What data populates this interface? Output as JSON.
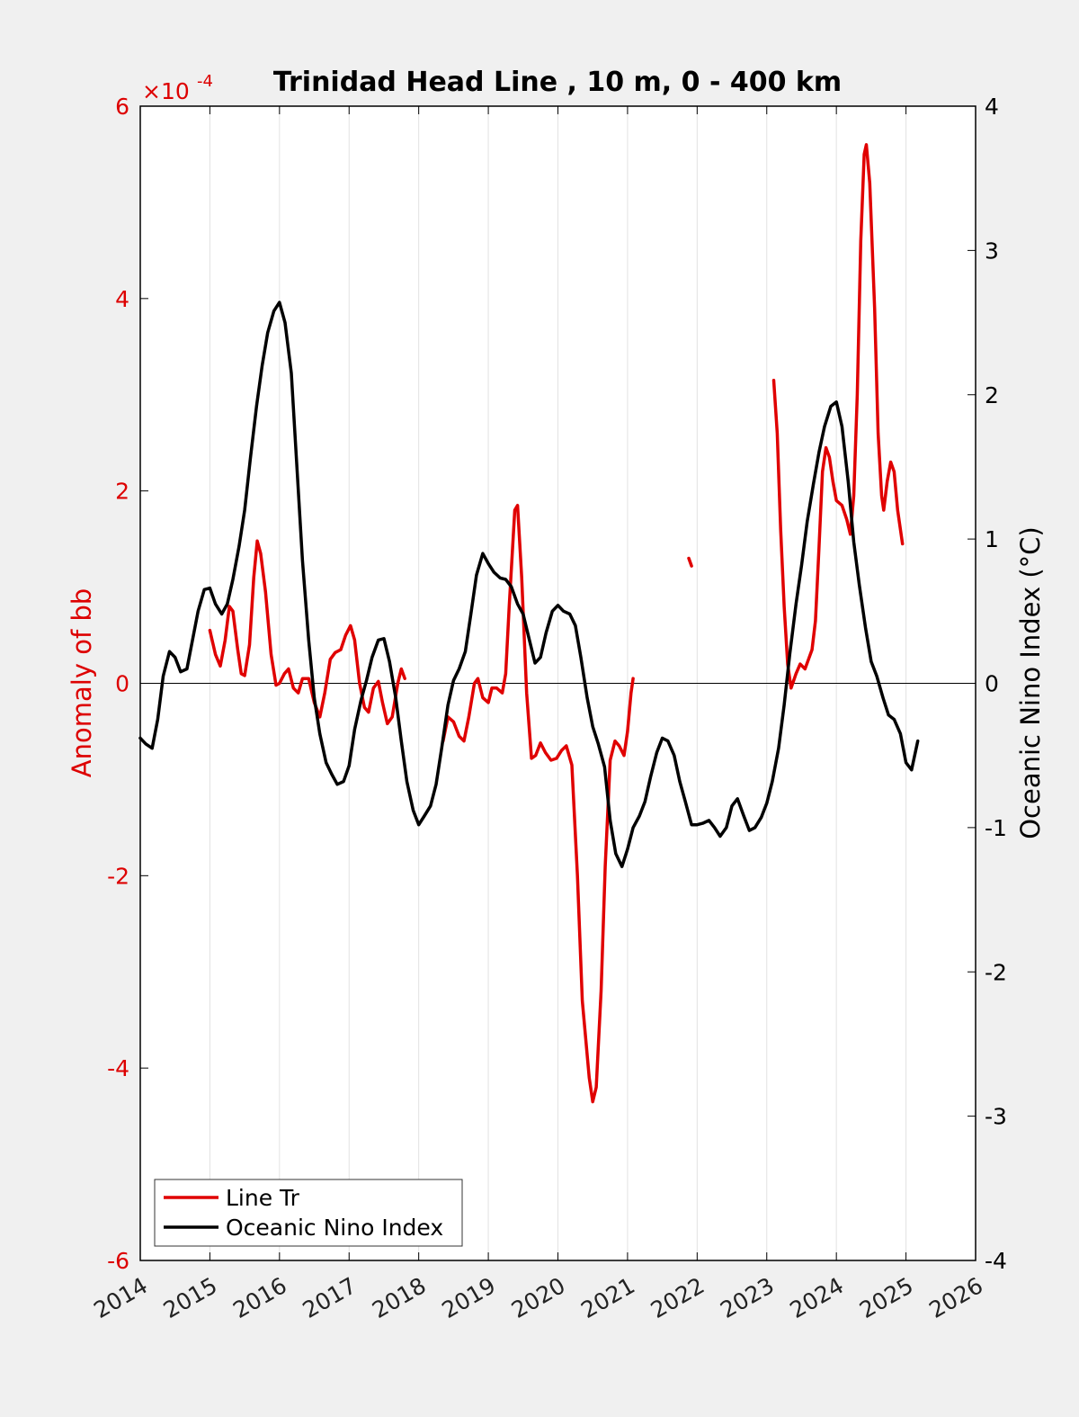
{
  "chart_data": {
    "type": "line",
    "title": "Trinidad Head Line , 10 m, 0 - 400 km",
    "ylabel_left": "Anomaly of bb",
    "ylabel_right": "Oceanic Nino Index (°C)",
    "left_exponent_base": "×10",
    "left_exponent_power": "-4",
    "xlim": [
      2014,
      2026
    ],
    "ylim_left": [
      -6,
      6
    ],
    "ylim_right": [
      -4,
      4
    ],
    "x_ticks": [
      "2014",
      "2015",
      "2016",
      "2017",
      "2018",
      "2019",
      "2020",
      "2021",
      "2022",
      "2023",
      "2024",
      "2025",
      "2026"
    ],
    "y_ticks_left": [
      "6",
      "4",
      "2",
      "0",
      "-2",
      "-4",
      "-6"
    ],
    "y_ticks_right": [
      "4",
      "3",
      "2",
      "1",
      "0",
      "-1",
      "-2",
      "-3",
      "-4"
    ],
    "grid": "vertical",
    "legend_position": "bottom-left",
    "colors": {
      "line_tr": "#e00000",
      "oni": "#000000",
      "left_axis": "#dd0000"
    },
    "series": [
      {
        "name": "Line Tr",
        "axis": "left",
        "segments": [
          [
            [
              2015.0,
              0.55
            ],
            [
              2015.08,
              0.3
            ],
            [
              2015.15,
              0.18
            ],
            [
              2015.22,
              0.45
            ],
            [
              2015.28,
              0.8
            ],
            [
              2015.33,
              0.75
            ],
            [
              2015.4,
              0.35
            ],
            [
              2015.45,
              0.1
            ],
            [
              2015.5,
              0.08
            ],
            [
              2015.57,
              0.4
            ],
            [
              2015.63,
              1.1
            ],
            [
              2015.68,
              1.48
            ],
            [
              2015.73,
              1.35
            ],
            [
              2015.8,
              0.95
            ],
            [
              2015.88,
              0.3
            ],
            [
              2015.95,
              -0.02
            ],
            [
              2016.0,
              0.0
            ],
            [
              2016.07,
              0.1
            ],
            [
              2016.13,
              0.15
            ],
            [
              2016.2,
              -0.05
            ],
            [
              2016.27,
              -0.1
            ],
            [
              2016.33,
              0.05
            ],
            [
              2016.42,
              0.05
            ],
            [
              2016.5,
              -0.2
            ],
            [
              2016.58,
              -0.35
            ],
            [
              2016.65,
              -0.1
            ],
            [
              2016.73,
              0.25
            ],
            [
              2016.8,
              0.32
            ],
            [
              2016.88,
              0.35
            ],
            [
              2016.95,
              0.5
            ],
            [
              2017.02,
              0.6
            ],
            [
              2017.08,
              0.45
            ],
            [
              2017.15,
              0.0
            ],
            [
              2017.22,
              -0.25
            ],
            [
              2017.28,
              -0.3
            ],
            [
              2017.35,
              -0.05
            ],
            [
              2017.42,
              0.02
            ],
            [
              2017.48,
              -0.2
            ],
            [
              2017.55,
              -0.42
            ],
            [
              2017.62,
              -0.35
            ],
            [
              2017.7,
              0.0
            ],
            [
              2017.75,
              0.15
            ],
            [
              2017.8,
              0.05
            ]
          ],
          [
            [
              2018.35,
              -0.6
            ],
            [
              2018.42,
              -0.35
            ],
            [
              2018.5,
              -0.4
            ],
            [
              2018.58,
              -0.55
            ],
            [
              2018.65,
              -0.6
            ],
            [
              2018.72,
              -0.35
            ],
            [
              2018.8,
              0.0
            ],
            [
              2018.85,
              0.05
            ],
            [
              2018.92,
              -0.15
            ],
            [
              2019.0,
              -0.2
            ],
            [
              2019.05,
              -0.05
            ],
            [
              2019.12,
              -0.05
            ],
            [
              2019.2,
              -0.1
            ],
            [
              2019.25,
              0.1
            ],
            [
              2019.3,
              0.8
            ],
            [
              2019.38,
              1.8
            ],
            [
              2019.42,
              1.85
            ],
            [
              2019.48,
              1.1
            ],
            [
              2019.55,
              -0.1
            ],
            [
              2019.62,
              -0.78
            ],
            [
              2019.68,
              -0.75
            ],
            [
              2019.75,
              -0.62
            ],
            [
              2019.82,
              -0.72
            ],
            [
              2019.9,
              -0.8
            ],
            [
              2019.98,
              -0.78
            ],
            [
              2020.05,
              -0.7
            ],
            [
              2020.12,
              -0.65
            ],
            [
              2020.2,
              -0.85
            ],
            [
              2020.28,
              -2.0
            ],
            [
              2020.35,
              -3.3
            ],
            [
              2020.45,
              -4.1
            ],
            [
              2020.5,
              -4.35
            ],
            [
              2020.55,
              -4.2
            ],
            [
              2020.62,
              -3.2
            ],
            [
              2020.68,
              -1.9
            ],
            [
              2020.75,
              -0.8
            ],
            [
              2020.82,
              -0.6
            ],
            [
              2020.88,
              -0.65
            ],
            [
              2020.95,
              -0.75
            ],
            [
              2021.0,
              -0.5
            ],
            [
              2021.05,
              -0.1
            ],
            [
              2021.08,
              0.05
            ]
          ],
          [
            [
              2021.88,
              1.3
            ],
            [
              2021.92,
              1.22
            ]
          ],
          [
            [
              2023.1,
              3.15
            ],
            [
              2023.15,
              2.6
            ],
            [
              2023.2,
              1.6
            ],
            [
              2023.25,
              0.8
            ],
            [
              2023.3,
              0.2
            ],
            [
              2023.35,
              -0.05
            ],
            [
              2023.42,
              0.1
            ],
            [
              2023.48,
              0.2
            ],
            [
              2023.55,
              0.15
            ],
            [
              2023.6,
              0.25
            ],
            [
              2023.65,
              0.35
            ],
            [
              2023.7,
              0.65
            ],
            [
              2023.75,
              1.4
            ],
            [
              2023.8,
              2.2
            ],
            [
              2023.85,
              2.45
            ],
            [
              2023.9,
              2.35
            ],
            [
              2023.95,
              2.1
            ],
            [
              2024.0,
              1.9
            ],
            [
              2024.08,
              1.85
            ],
            [
              2024.15,
              1.7
            ],
            [
              2024.2,
              1.55
            ],
            [
              2024.25,
              1.95
            ],
            [
              2024.3,
              3.0
            ],
            [
              2024.35,
              4.6
            ],
            [
              2024.4,
              5.5
            ],
            [
              2024.43,
              5.6
            ],
            [
              2024.48,
              5.2
            ],
            [
              2024.55,
              3.9
            ],
            [
              2024.6,
              2.6
            ],
            [
              2024.65,
              1.95
            ],
            [
              2024.68,
              1.8
            ],
            [
              2024.73,
              2.1
            ],
            [
              2024.78,
              2.3
            ],
            [
              2024.83,
              2.2
            ],
            [
              2024.88,
              1.8
            ],
            [
              2024.95,
              1.45
            ]
          ]
        ]
      },
      {
        "name": "Oceanic Nino Index",
        "axis": "right",
        "segments": [
          [
            [
              2014.0,
              -0.38
            ],
            [
              2014.08,
              -0.42
            ],
            [
              2014.17,
              -0.45
            ],
            [
              2014.25,
              -0.25
            ],
            [
              2014.33,
              0.05
            ],
            [
              2014.42,
              0.22
            ],
            [
              2014.5,
              0.18
            ],
            [
              2014.58,
              0.08
            ],
            [
              2014.67,
              0.1
            ],
            [
              2014.75,
              0.3
            ],
            [
              2014.83,
              0.5
            ],
            [
              2014.92,
              0.65
            ],
            [
              2015.0,
              0.66
            ],
            [
              2015.08,
              0.55
            ],
            [
              2015.17,
              0.48
            ],
            [
              2015.25,
              0.55
            ],
            [
              2015.33,
              0.72
            ],
            [
              2015.42,
              0.95
            ],
            [
              2015.5,
              1.2
            ],
            [
              2015.58,
              1.55
            ],
            [
              2015.67,
              1.92
            ],
            [
              2015.75,
              2.2
            ],
            [
              2015.83,
              2.43
            ],
            [
              2015.92,
              2.58
            ],
            [
              2016.0,
              2.64
            ],
            [
              2016.08,
              2.5
            ],
            [
              2016.17,
              2.15
            ],
            [
              2016.25,
              1.5
            ],
            [
              2016.33,
              0.85
            ],
            [
              2016.42,
              0.3
            ],
            [
              2016.5,
              -0.1
            ],
            [
              2016.58,
              -0.35
            ],
            [
              2016.67,
              -0.55
            ],
            [
              2016.75,
              -0.63
            ],
            [
              2016.83,
              -0.7
            ],
            [
              2016.92,
              -0.68
            ],
            [
              2017.0,
              -0.57
            ],
            [
              2017.08,
              -0.32
            ],
            [
              2017.17,
              -0.12
            ],
            [
              2017.25,
              0.02
            ],
            [
              2017.33,
              0.18
            ],
            [
              2017.42,
              0.3
            ],
            [
              2017.5,
              0.31
            ],
            [
              2017.58,
              0.15
            ],
            [
              2017.67,
              -0.1
            ],
            [
              2017.75,
              -0.4
            ],
            [
              2017.83,
              -0.68
            ],
            [
              2017.92,
              -0.88
            ],
            [
              2018.0,
              -0.98
            ],
            [
              2018.08,
              -0.92
            ],
            [
              2018.17,
              -0.85
            ],
            [
              2018.25,
              -0.7
            ],
            [
              2018.33,
              -0.45
            ],
            [
              2018.42,
              -0.15
            ],
            [
              2018.5,
              0.02
            ],
            [
              2018.58,
              0.1
            ],
            [
              2018.67,
              0.22
            ],
            [
              2018.75,
              0.48
            ],
            [
              2018.83,
              0.75
            ],
            [
              2018.92,
              0.9
            ],
            [
              2019.0,
              0.83
            ],
            [
              2019.08,
              0.77
            ],
            [
              2019.17,
              0.73
            ],
            [
              2019.25,
              0.72
            ],
            [
              2019.33,
              0.67
            ],
            [
              2019.42,
              0.55
            ],
            [
              2019.5,
              0.48
            ],
            [
              2019.58,
              0.32
            ],
            [
              2019.67,
              0.14
            ],
            [
              2019.75,
              0.18
            ],
            [
              2019.83,
              0.35
            ],
            [
              2019.92,
              0.5
            ],
            [
              2020.0,
              0.54
            ],
            [
              2020.08,
              0.5
            ],
            [
              2020.17,
              0.48
            ],
            [
              2020.25,
              0.4
            ],
            [
              2020.33,
              0.18
            ],
            [
              2020.42,
              -0.1
            ],
            [
              2020.5,
              -0.3
            ],
            [
              2020.58,
              -0.42
            ],
            [
              2020.67,
              -0.58
            ],
            [
              2020.75,
              -0.95
            ],
            [
              2020.83,
              -1.18
            ],
            [
              2020.92,
              -1.27
            ],
            [
              2021.0,
              -1.15
            ],
            [
              2021.08,
              -1.0
            ],
            [
              2021.17,
              -0.92
            ],
            [
              2021.25,
              -0.82
            ],
            [
              2021.33,
              -0.65
            ],
            [
              2021.42,
              -0.48
            ],
            [
              2021.5,
              -0.38
            ],
            [
              2021.58,
              -0.4
            ],
            [
              2021.67,
              -0.5
            ],
            [
              2021.75,
              -0.68
            ],
            [
              2021.83,
              -0.82
            ],
            [
              2021.92,
              -0.98
            ],
            [
              2022.0,
              -0.98
            ],
            [
              2022.08,
              -0.97
            ],
            [
              2022.17,
              -0.95
            ],
            [
              2022.25,
              -1.0
            ],
            [
              2022.33,
              -1.06
            ],
            [
              2022.42,
              -1.0
            ],
            [
              2022.5,
              -0.85
            ],
            [
              2022.58,
              -0.8
            ],
            [
              2022.67,
              -0.92
            ],
            [
              2022.75,
              -1.02
            ],
            [
              2022.83,
              -1.0
            ],
            [
              2022.92,
              -0.93
            ],
            [
              2023.0,
              -0.83
            ],
            [
              2023.08,
              -0.68
            ],
            [
              2023.17,
              -0.45
            ],
            [
              2023.25,
              -0.15
            ],
            [
              2023.33,
              0.2
            ],
            [
              2023.42,
              0.55
            ],
            [
              2023.5,
              0.82
            ],
            [
              2023.58,
              1.12
            ],
            [
              2023.67,
              1.38
            ],
            [
              2023.75,
              1.6
            ],
            [
              2023.83,
              1.78
            ],
            [
              2023.92,
              1.92
            ],
            [
              2024.0,
              1.95
            ],
            [
              2024.08,
              1.78
            ],
            [
              2024.17,
              1.4
            ],
            [
              2024.25,
              0.98
            ],
            [
              2024.33,
              0.68
            ],
            [
              2024.42,
              0.38
            ],
            [
              2024.5,
              0.15
            ],
            [
              2024.58,
              0.05
            ],
            [
              2024.67,
              -0.1
            ],
            [
              2024.75,
              -0.22
            ],
            [
              2024.83,
              -0.25
            ],
            [
              2024.92,
              -0.35
            ],
            [
              2025.0,
              -0.55
            ],
            [
              2025.08,
              -0.6
            ],
            [
              2025.17,
              -0.4
            ]
          ]
        ]
      }
    ]
  }
}
